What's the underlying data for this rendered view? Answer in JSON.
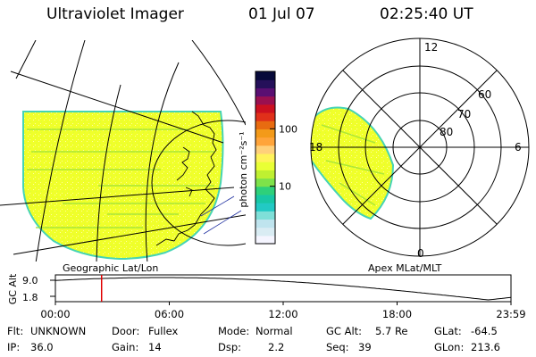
{
  "header": {
    "instrument": "Ultraviolet Imager",
    "date": "01 Jul 07",
    "time": "02:25:40 UT"
  },
  "colorbar": {
    "unit_label": "photon cm⁻²s⁻¹",
    "ticks": [
      {
        "label": "100",
        "value": 100
      },
      {
        "label": "10",
        "value": 10
      }
    ],
    "colors": [
      "#f5f5ff",
      "#d9ecf3",
      "#bfe4ee",
      "#7fdfd8",
      "#22c9c4",
      "#18c7a5",
      "#2ed07a",
      "#7ee24a",
      "#bff031",
      "#e9ff35",
      "#fff35a",
      "#ffd07a",
      "#ffa43a",
      "#f39a19",
      "#e86b10",
      "#e0301a",
      "#cc1020",
      "#9a1050",
      "#5a0f72",
      "#25105a",
      "#070a3a"
    ]
  },
  "geographic_panel": {
    "caption": "Geographic Lat/Lon"
  },
  "polar_panel": {
    "caption": "Apex MLat/MLT",
    "mlt_labels": [
      "12",
      "6",
      "0",
      "18"
    ],
    "lat_labels": [
      "60",
      "70",
      "80"
    ]
  },
  "altitude_plot": {
    "axis_label": "GC Alt",
    "y_ticks": [
      "9.0",
      "1.8"
    ],
    "x_ticks": [
      "00:00",
      "06:00",
      "12:00",
      "18:00",
      "23:59"
    ],
    "current_time_fraction": 0.1014
  },
  "info": {
    "row1": [
      {
        "key": "Flt:",
        "value": "UNKNOWN"
      },
      {
        "key": "Door:",
        "value": "Fullex"
      },
      {
        "key": "Mode:",
        "value": "Normal"
      },
      {
        "key": "GC Alt:",
        "value": "5.7 Re"
      },
      {
        "key": "GLat:",
        "value": "-64.5"
      }
    ],
    "row2": [
      {
        "key": "IP:",
        "value": "36.0"
      },
      {
        "key": "Gain:",
        "value": "14"
      },
      {
        "key": "Dsp:",
        "value": "2.2"
      },
      {
        "key": "Seq:",
        "value": "39"
      },
      {
        "key": "GLon:",
        "value": "213.6"
      }
    ]
  }
}
